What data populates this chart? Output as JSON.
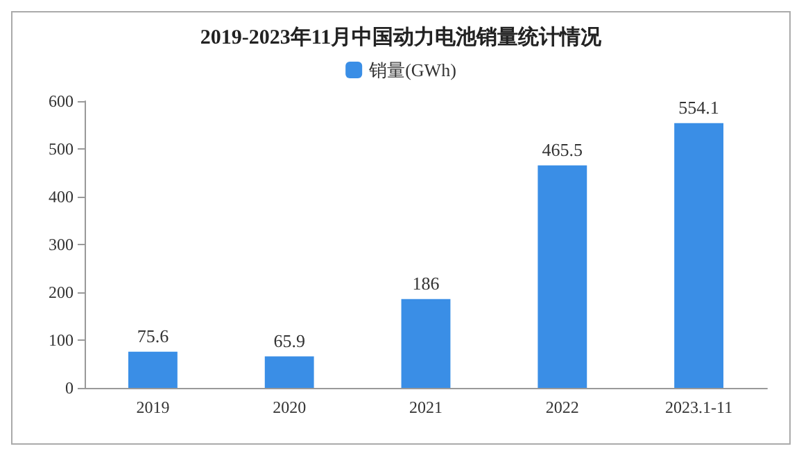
{
  "chart_data": {
    "type": "bar",
    "title": "2019-2023年11月中国动力电池销量统计情况",
    "categories": [
      "2019",
      "2020",
      "2021",
      "2022",
      "2023.1-11"
    ],
    "series": [
      {
        "name": "销量(GWh)",
        "color": "#3a8ee6",
        "values": [
          75.6,
          65.9,
          186,
          465.5,
          554.1
        ]
      }
    ],
    "ylim": [
      0,
      600
    ],
    "yticks": [
      0,
      100,
      200,
      300,
      400,
      500,
      600
    ],
    "grid": false,
    "legend": "top",
    "data_labels": true
  }
}
